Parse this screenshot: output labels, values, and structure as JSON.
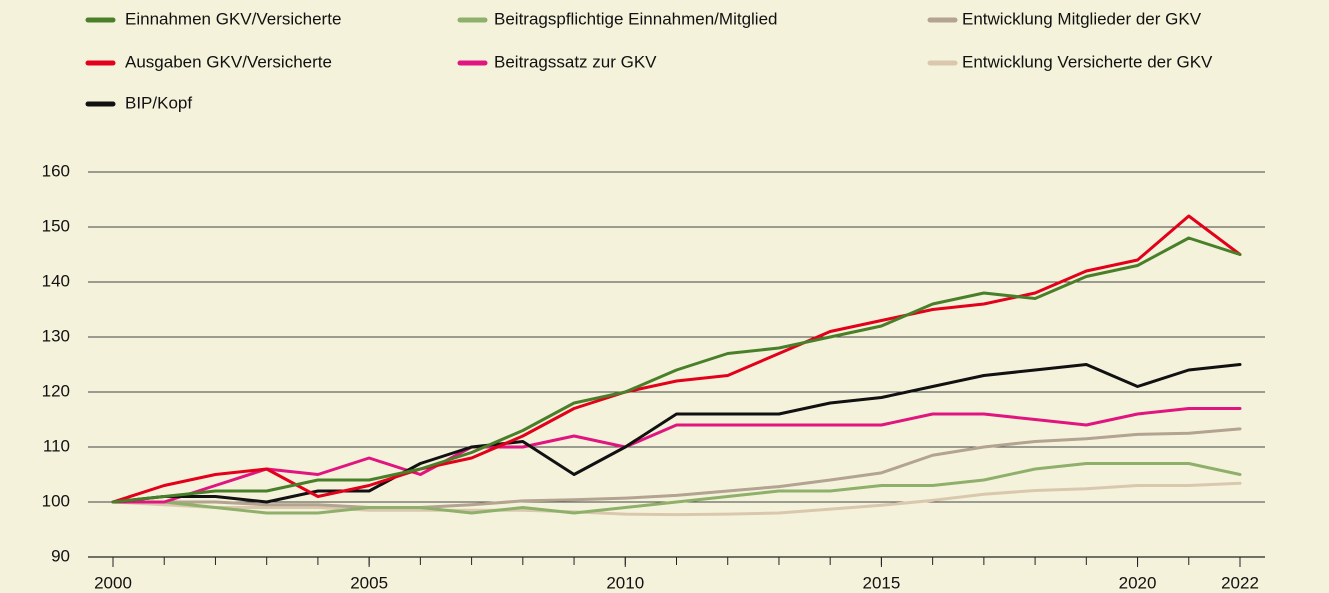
{
  "chart_data": {
    "type": "line",
    "x": [
      2000,
      2001,
      2002,
      2003,
      2004,
      2005,
      2006,
      2007,
      2008,
      2009,
      2010,
      2011,
      2012,
      2013,
      2014,
      2015,
      2016,
      2017,
      2018,
      2019,
      2020,
      2021,
      2022
    ],
    "xlim": [
      2000,
      2022
    ],
    "xticks": [
      2000,
      2005,
      2010,
      2015,
      2020,
      2022
    ],
    "ylim": [
      90,
      160
    ],
    "yticks": [
      90,
      100,
      110,
      120,
      130,
      140,
      150,
      160
    ],
    "grid": true,
    "series": [
      {
        "name": "Einnahmen GKV/Versicherte",
        "color": "#4a7f2a",
        "values": [
          100,
          101,
          102,
          102,
          104,
          104,
          106,
          109,
          113,
          118,
          120,
          124,
          127,
          128,
          130,
          132,
          136,
          138,
          137,
          141,
          143,
          148,
          145
        ]
      },
      {
        "name": "Beitragspflichtige Einnahmen/Mitglied",
        "color": "#8fb06a",
        "values": [
          100,
          100,
          99,
          98,
          98,
          99,
          99,
          98,
          99,
          98,
          99,
          100,
          101,
          102,
          102,
          103,
          103,
          104,
          106,
          107,
          107,
          107,
          105
        ]
      },
      {
        "name": "Entwicklung Mitglieder der GKV",
        "color": "#b3a391",
        "values": [
          100,
          100,
          100,
          99.5,
          99.5,
          99,
          99,
          99.5,
          100.2,
          100.4,
          100.7,
          101.2,
          102,
          102.8,
          104,
          105.3,
          108.5,
          110,
          111,
          111.5,
          112.3,
          112.5,
          113.3
        ]
      },
      {
        "name": "Ausgaben GKV/Versicherte",
        "color": "#e2001a",
        "values": [
          100,
          103,
          105,
          106,
          101,
          103,
          106,
          108,
          112,
          117,
          120,
          122,
          123,
          127,
          131,
          133,
          135,
          136,
          138,
          142,
          144,
          152,
          145
        ]
      },
      {
        "name": "Beitragssatz zur GKV",
        "color": "#e0157f",
        "values": [
          100,
          100,
          103,
          106,
          105,
          108,
          105,
          110,
          110,
          112,
          110,
          114,
          114,
          114,
          114,
          114,
          116,
          116,
          115,
          114,
          116,
          117,
          117
        ]
      },
      {
        "name": "Entwicklung Versicherte der GKV",
        "color": "#d9c8ae",
        "values": [
          100,
          99.5,
          99,
          99,
          99,
          98.5,
          98.5,
          98.5,
          98.5,
          98.2,
          97.8,
          97.7,
          97.8,
          98,
          98.7,
          99.4,
          100.3,
          101.4,
          102.1,
          102.4,
          103,
          103,
          103.4
        ]
      },
      {
        "name": "BIP/Kopf",
        "color": "#111111",
        "values": [
          100,
          101,
          101,
          100,
          102,
          102,
          107,
          110,
          111,
          105,
          110,
          116,
          116,
          116,
          118,
          119,
          121,
          123,
          124,
          125,
          121,
          124,
          125
        ]
      }
    ]
  }
}
